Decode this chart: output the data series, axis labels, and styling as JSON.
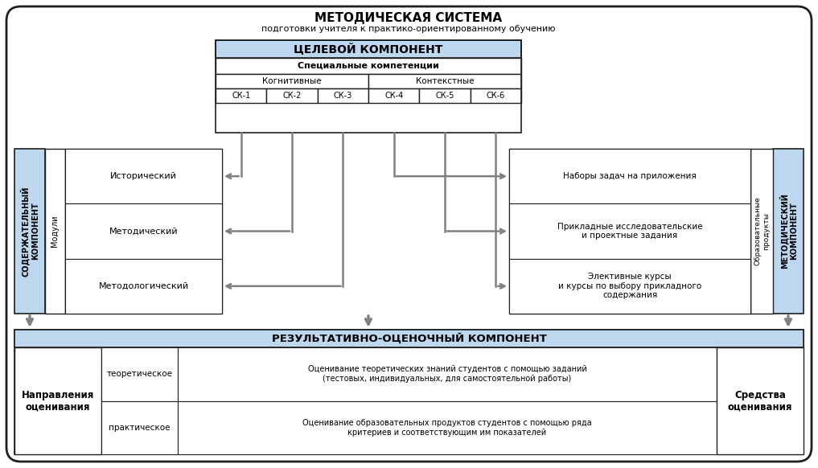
{
  "title_line1": "МЕТОДИЧЕСКАЯ СИСТЕМА",
  "title_line2": "подготовки учителя к практико-ориентированному обучению",
  "target_component_title": "ЦЕЛЕВОЙ КОМПОНЕНТ",
  "special_competencies": "Специальные компетенции",
  "cognitive_label": "Когнитивные",
  "contextual_label": "Контекстные",
  "sk_labels": [
    "СК-1",
    "СК-2",
    "СК-3",
    "СК-4",
    "СК-5",
    "СК-6"
  ],
  "content_component": "СОДЕРЖАТЕЛЬНЫЙ\nКОМПОНЕНТ",
  "modules_label": "Модули",
  "modules": [
    "Исторический",
    "Методический",
    "Методологический"
  ],
  "methodical_component": "МЕТОДИЧЕСКИЙ\nКОМПОНЕНТ",
  "edu_products_label": "Образовательные\nпродукты",
  "edu_products": [
    "Наборы задач на приложения",
    "Прикладные исследовательские\nи проектные задания",
    "Элективные курсы\nи курсы по выбору прикладного\nсодержания"
  ],
  "result_component": "РЕЗУЛЬТАТИВНО-ОЦЕНОЧНЫЙ КОМПОНЕНТ",
  "directions_label": "Направления\nоценивания",
  "assessment_types": [
    "теоретическое",
    "практическое"
  ],
  "assessment_texts": [
    "Оценивание теоретических знаний студентов с помощью заданий\n(тестовых, индивидуальных, для самостоятельной работы)",
    "Оценивание образовательных продуктов студентов с помощью ряда\nкритериев и соответствующим им показателей"
  ],
  "means_label": "Средства\nоценивания",
  "light_blue": "#BDD7EE",
  "white": "#FFFFFF",
  "border_color": "#1F1F1F",
  "outer_bg": "#FFFFFF",
  "arrow_color": "#808080",
  "line_color": "#808080"
}
